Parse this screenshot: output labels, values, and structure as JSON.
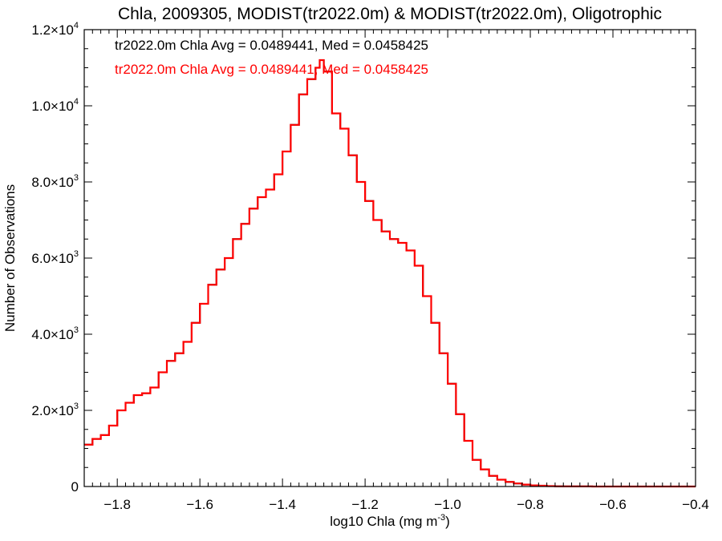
{
  "chart_data": {
    "type": "line",
    "title": "Chla, 2009305, MODIST(tr2022.0m) & MODIST(tr2022.0m), Oligotrophic",
    "xlabel": {
      "base": "log10 Chla (mg m",
      "sup": "-3",
      "tail": ")"
    },
    "ylabel": "Number of Observations",
    "xlim": [
      -1.88,
      -0.4
    ],
    "ylim": [
      0,
      12000
    ],
    "grid": false,
    "step": true,
    "x_ticks": [
      {
        "value": -1.8,
        "label": "−1.8"
      },
      {
        "value": -1.6,
        "label": "−1.6"
      },
      {
        "value": -1.4,
        "label": "−1.4"
      },
      {
        "value": -1.2,
        "label": "−1.2"
      },
      {
        "value": -1.0,
        "label": "−1.0"
      },
      {
        "value": -0.8,
        "label": "−0.8"
      },
      {
        "value": -0.6,
        "label": "−0.6"
      },
      {
        "value": -0.4,
        "label": "−0.4"
      }
    ],
    "y_ticks": [
      {
        "value": 0,
        "mant": "0",
        "exp": ""
      },
      {
        "value": 2000,
        "mant": "2.0×10",
        "exp": "3"
      },
      {
        "value": 4000,
        "mant": "4.0×10",
        "exp": "3"
      },
      {
        "value": 6000,
        "mant": "6.0×10",
        "exp": "3"
      },
      {
        "value": 8000,
        "mant": "8.0×10",
        "exp": "3"
      },
      {
        "value": 10000,
        "mant": "1.0×10",
        "exp": "4"
      },
      {
        "value": 12000,
        "mant": "1.2×10",
        "exp": "4"
      }
    ],
    "annotations": [
      {
        "text": "tr2022.0m Chla Avg = 0.0489441, Med = 0.0458425",
        "color": "#000000"
      },
      {
        "text": "tr2022.0m Chla Avg = 0.0489441, Med = 0.0458425",
        "color": "#ff0000"
      }
    ],
    "series": [
      {
        "color": "#000000",
        "x": [
          -1.88,
          -1.86,
          -1.84,
          -1.82,
          -1.8,
          -1.78,
          -1.76,
          -1.74,
          -1.72,
          -1.7,
          -1.68,
          -1.66,
          -1.64,
          -1.62,
          -1.6,
          -1.58,
          -1.56,
          -1.54,
          -1.52,
          -1.5,
          -1.48,
          -1.46,
          -1.44,
          -1.42,
          -1.4,
          -1.38,
          -1.36,
          -1.34,
          -1.32,
          -1.31,
          -1.3,
          -1.28,
          -1.26,
          -1.24,
          -1.22,
          -1.2,
          -1.18,
          -1.16,
          -1.14,
          -1.12,
          -1.1,
          -1.08,
          -1.06,
          -1.04,
          -1.02,
          -1.0,
          -0.98,
          -0.96,
          -0.94,
          -0.92,
          -0.9,
          -0.88,
          -0.86,
          -0.84,
          -0.82,
          -0.8,
          -0.78,
          -0.76,
          -0.74,
          -0.72,
          -0.7,
          -0.65,
          -0.6,
          -0.55,
          -0.5,
          -0.45,
          -0.4
        ],
        "y": [
          1100,
          1250,
          1350,
          1600,
          2000,
          2200,
          2400,
          2450,
          2600,
          3000,
          3300,
          3500,
          3800,
          4300,
          4800,
          5300,
          5700,
          6000,
          6500,
          6900,
          7300,
          7600,
          7800,
          8200,
          8800,
          9500,
          10300,
          10700,
          11000,
          11200,
          10900,
          9800,
          9400,
          8700,
          8000,
          7500,
          7000,
          6700,
          6500,
          6400,
          6200,
          5800,
          5000,
          4300,
          3500,
          2700,
          1900,
          1200,
          700,
          450,
          280,
          180,
          120,
          80,
          50,
          30,
          20,
          10,
          5,
          3,
          2,
          1,
          0,
          0,
          0,
          0,
          0
        ]
      },
      {
        "color": "#ff0000",
        "x": [
          -1.88,
          -1.86,
          -1.84,
          -1.82,
          -1.8,
          -1.78,
          -1.76,
          -1.74,
          -1.72,
          -1.7,
          -1.68,
          -1.66,
          -1.64,
          -1.62,
          -1.6,
          -1.58,
          -1.56,
          -1.54,
          -1.52,
          -1.5,
          -1.48,
          -1.46,
          -1.44,
          -1.42,
          -1.4,
          -1.38,
          -1.36,
          -1.34,
          -1.32,
          -1.31,
          -1.3,
          -1.28,
          -1.26,
          -1.24,
          -1.22,
          -1.2,
          -1.18,
          -1.16,
          -1.14,
          -1.12,
          -1.1,
          -1.08,
          -1.06,
          -1.04,
          -1.02,
          -1.0,
          -0.98,
          -0.96,
          -0.94,
          -0.92,
          -0.9,
          -0.88,
          -0.86,
          -0.84,
          -0.82,
          -0.8,
          -0.78,
          -0.76,
          -0.74,
          -0.72,
          -0.7,
          -0.65,
          -0.6,
          -0.55,
          -0.5,
          -0.45,
          -0.4
        ],
        "y": [
          1100,
          1250,
          1350,
          1600,
          2000,
          2200,
          2400,
          2450,
          2600,
          3000,
          3300,
          3500,
          3800,
          4300,
          4800,
          5300,
          5700,
          6000,
          6500,
          6900,
          7300,
          7600,
          7800,
          8200,
          8800,
          9500,
          10300,
          10700,
          11000,
          11200,
          10900,
          9800,
          9400,
          8700,
          8000,
          7500,
          7000,
          6700,
          6500,
          6400,
          6200,
          5800,
          5000,
          4300,
          3500,
          2700,
          1900,
          1200,
          700,
          450,
          280,
          180,
          120,
          80,
          50,
          30,
          20,
          10,
          5,
          3,
          2,
          1,
          0,
          0,
          0,
          0,
          0
        ]
      }
    ]
  }
}
